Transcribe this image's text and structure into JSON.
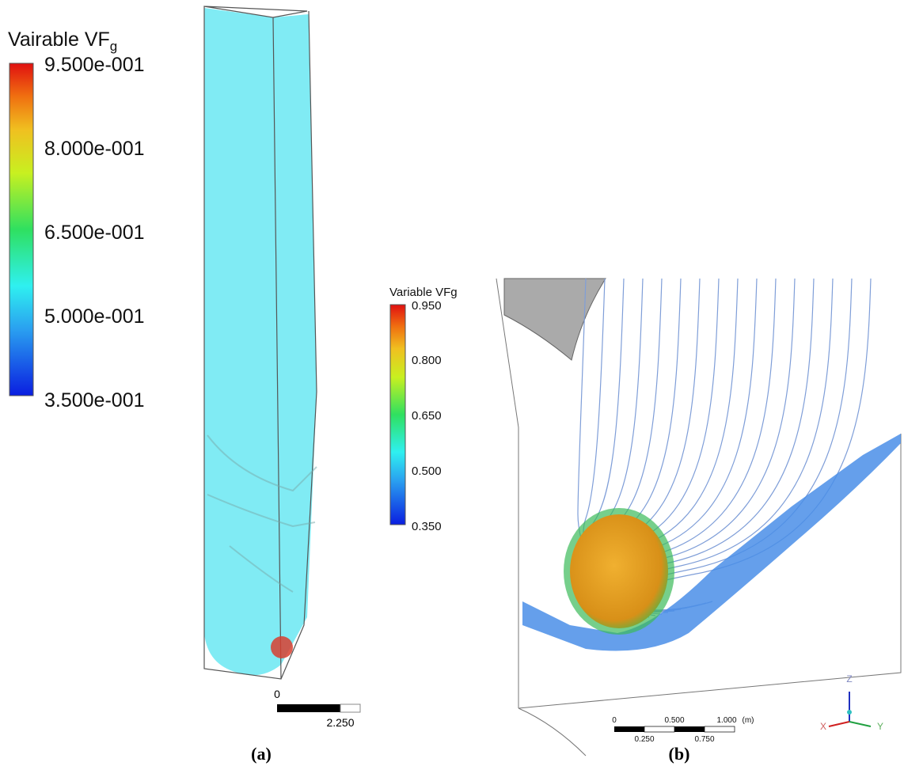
{
  "panel_a": {
    "legend_title": "Vairable VF",
    "legend_title_sub": "g",
    "ticks": [
      "9.500e-001",
      "8.000e-001",
      "6.500e-001",
      "5.000e-001",
      "3.500e-001"
    ],
    "scale_labels": [
      "0",
      "2.250"
    ],
    "caption": "(a)"
  },
  "panel_b": {
    "legend_title": "Variable VFg",
    "ticks": [
      "0.950",
      "0.800",
      "0.650",
      "0.500",
      "0.350"
    ],
    "scale_labels": [
      "0",
      "0.500",
      "1.000",
      "(m)",
      "0.250",
      "0.750"
    ],
    "axis_labels": [
      "Z",
      "X",
      "Y"
    ],
    "caption": "(b)"
  }
}
